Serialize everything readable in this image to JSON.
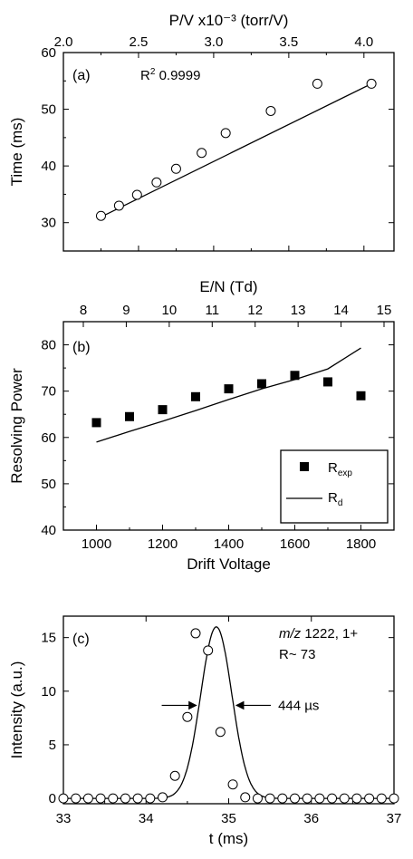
{
  "chart_data": [
    {
      "panel": "(a)",
      "type": "scatter",
      "title": "",
      "xlabel": "",
      "x2label": "P/V x10⁻³ (torr/V)",
      "ylabel": "Time (ms)",
      "xlim": [
        2.0,
        4.2
      ],
      "ylim": [
        25,
        60
      ],
      "xticks": [
        "2.0",
        "2.5",
        "3.0",
        "3.5",
        "4.0"
      ],
      "yticks": [
        "30",
        "40",
        "50",
        "60"
      ],
      "annotation": {
        "r2_prefix": "R",
        "r2_sup": "2",
        "r2_value": " 0.9999"
      },
      "series": [
        {
          "marker": "open-circle",
          "x": [
            2.25,
            2.37,
            2.49,
            2.62,
            2.75,
            2.92,
            3.08,
            3.38,
            3.69,
            4.05
          ],
          "y": [
            31.2,
            33.0,
            34.9,
            37.1,
            39.5,
            42.3,
            45.8,
            49.7,
            54.5,
            54.5
          ]
        },
        {
          "marker": "line",
          "x": [
            2.25,
            4.05
          ],
          "y": [
            31.0,
            54.5
          ]
        }
      ]
    },
    {
      "panel": "(b)",
      "type": "scatter",
      "title": "",
      "xlabel": "Drift Voltage",
      "x2label": "E/N (Td)",
      "ylabel": "Resolving Power",
      "xlim": [
        900,
        1900
      ],
      "ylim": [
        40,
        85
      ],
      "xticks": [
        "1000",
        "1200",
        "1400",
        "1600",
        "1800"
      ],
      "x2ticks": [
        "8",
        "9",
        "10",
        "11",
        "12",
        "13",
        "14",
        "15"
      ],
      "yticks": [
        "40",
        "50",
        "60",
        "70",
        "80"
      ],
      "legend": {
        "placement": "bottom-right",
        "entries": [
          {
            "marker": "square",
            "name": "R",
            "sub": "exp"
          },
          {
            "marker": "line",
            "name": "R",
            "sub": "d"
          }
        ]
      },
      "series": [
        {
          "marker": "square",
          "x": [
            1000,
            1100,
            1200,
            1300,
            1400,
            1500,
            1600,
            1700,
            1800
          ],
          "y": [
            63.2,
            64.5,
            66.0,
            68.8,
            70.5,
            71.6,
            73.4,
            72.0,
            69.0
          ]
        },
        {
          "marker": "line",
          "x": [
            1000,
            1100,
            1200,
            1300,
            1400,
            1500,
            1600,
            1700,
            1800
          ],
          "y": [
            59.0,
            61.3,
            63.5,
            65.8,
            68.2,
            70.5,
            72.5,
            74.8,
            79.3
          ]
        }
      ]
    },
    {
      "panel": "(c)",
      "type": "line",
      "title": "",
      "xlabel": "t (ms)",
      "ylabel": "Intensity (a.u.)",
      "xlim": [
        33,
        37
      ],
      "ylim": [
        -0.5,
        17
      ],
      "xticks": [
        "33",
        "34",
        "35",
        "36",
        "37"
      ],
      "yticks": [
        "0",
        "5",
        "10",
        "15"
      ],
      "annotation": {
        "line1_italic": "m/z",
        "line1_rest": " 1222, 1+",
        "line2": "R~ 73",
        "fwhm": "444 µs"
      },
      "gaussian": {
        "center": 34.85,
        "amplitude": 16.0,
        "fwhm_ms": 0.444
      },
      "series": [
        {
          "marker": "open-circle",
          "x": [
            33.0,
            33.15,
            33.3,
            33.45,
            33.6,
            33.75,
            33.9,
            34.05,
            34.2,
            34.35,
            34.5,
            34.6,
            34.75,
            34.9,
            35.05,
            35.2,
            35.35,
            35.5,
            35.65,
            35.8,
            35.95,
            36.1,
            36.25,
            36.4,
            36.55,
            36.7,
            36.85,
            37.0
          ],
          "y": [
            0,
            0,
            0,
            0,
            0,
            0,
            0,
            0,
            0.1,
            2.1,
            7.6,
            15.4,
            13.8,
            6.2,
            1.3,
            0.1,
            0,
            0,
            0,
            0,
            0,
            0,
            0,
            0,
            0,
            0,
            0,
            0
          ]
        }
      ]
    }
  ]
}
